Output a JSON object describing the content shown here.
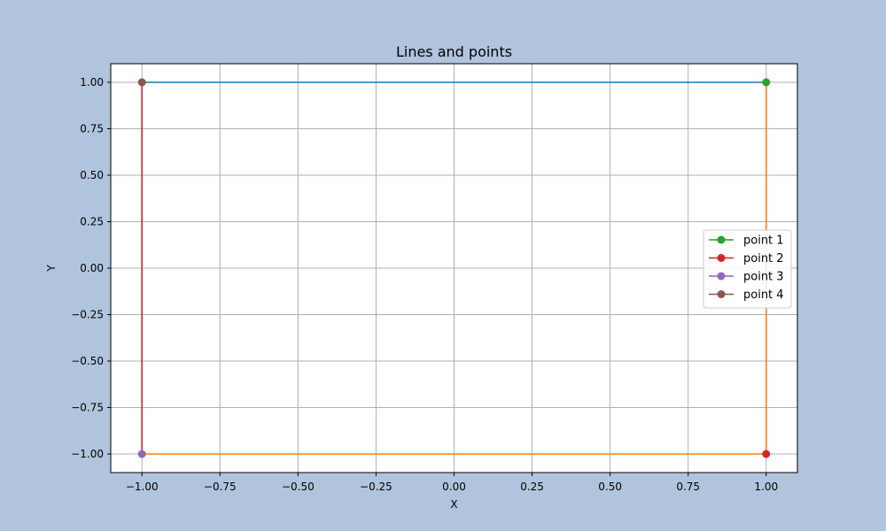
{
  "chart_data": {
    "type": "line",
    "title": "Lines and points",
    "xlabel": "X",
    "ylabel": "Y",
    "xlim": [
      -1.1,
      1.1
    ],
    "ylim": [
      -1.1,
      1.1
    ],
    "xticks": [
      -1.0,
      -0.75,
      -0.5,
      -0.25,
      0.0,
      0.25,
      0.5,
      0.75,
      1.0
    ],
    "yticks": [
      -1.0,
      -0.75,
      -0.5,
      -0.25,
      0.0,
      0.25,
      0.5,
      0.75,
      1.0
    ],
    "xtick_labels": [
      "−1.00",
      "−0.75",
      "−0.50",
      "−0.25",
      "0.00",
      "0.25",
      "0.50",
      "0.75",
      "1.00"
    ],
    "ytick_labels": [
      "−1.00",
      "−0.75",
      "−0.50",
      "−0.25",
      "0.00",
      "0.25",
      "0.50",
      "0.75",
      "1.00"
    ],
    "grid": true,
    "legend_position": "center-right",
    "lines": [
      {
        "x": [
          -1,
          1
        ],
        "y": [
          1,
          1
        ],
        "color": "#1f77b4"
      },
      {
        "x": [
          1,
          1,
          -1
        ],
        "y": [
          1,
          -1,
          -1
        ],
        "color": "#ff7f0e"
      },
      {
        "x": [
          -1,
          -1
        ],
        "y": [
          -1,
          1
        ],
        "color": "#d62728"
      }
    ],
    "series": [
      {
        "name": "point 1",
        "x": [
          1
        ],
        "y": [
          1
        ],
        "color": "#2ca02c"
      },
      {
        "name": "point 2",
        "x": [
          1
        ],
        "y": [
          -1
        ],
        "color": "#d62728"
      },
      {
        "name": "point 3",
        "x": [
          -1
        ],
        "y": [
          -1
        ],
        "color": "#9467bd"
      },
      {
        "name": "point 4",
        "x": [
          -1
        ],
        "y": [
          1
        ],
        "color": "#8c564b"
      }
    ]
  },
  "colors": {
    "figure_background": "#b0c4de",
    "plot_background": "#ffffff",
    "grid": "#b0b0b0"
  }
}
